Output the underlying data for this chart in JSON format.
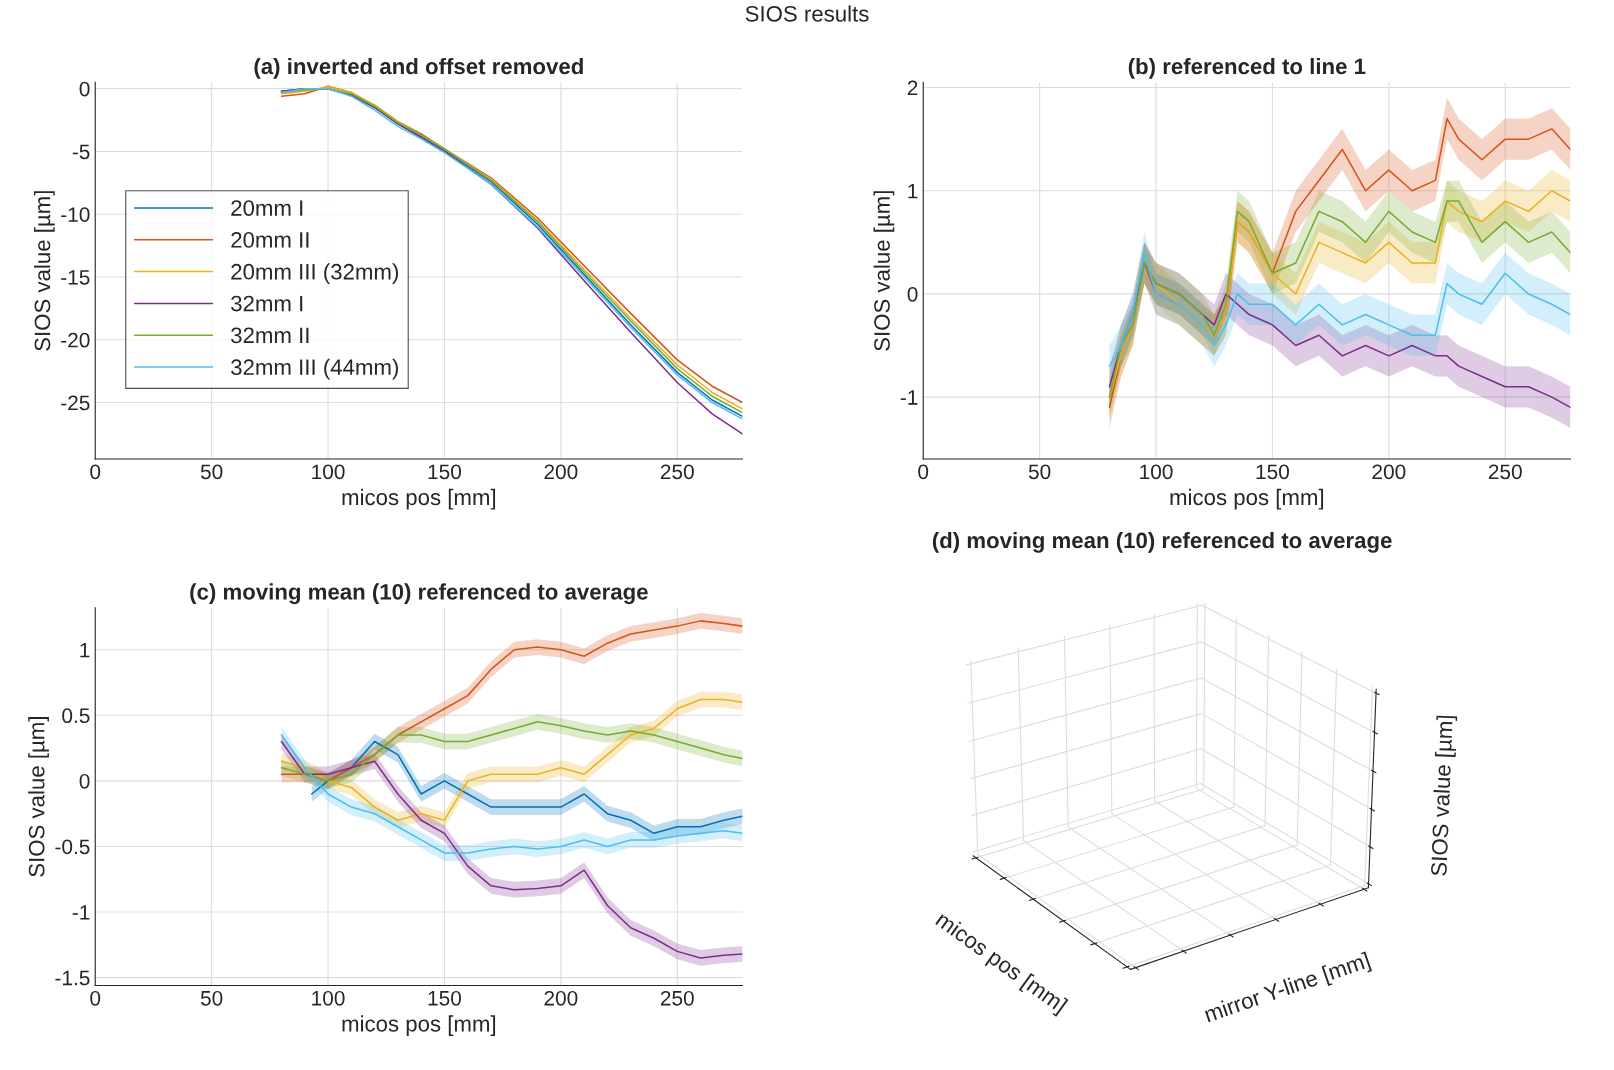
{
  "chart_data": [
    {
      "type": "line",
      "title": "(a) inverted and offset removed",
      "annotations": [
        "SIOS results"
      ],
      "xlabel": "micos pos [mm]",
      "ylabel": "SIOS value [µm]",
      "xlim": [
        0,
        278
      ],
      "ylim": [
        -29.5,
        0.5
      ],
      "xticks": [
        0,
        50,
        100,
        150,
        200,
        250
      ],
      "yticks": [
        -25,
        -20,
        -15,
        -10,
        -5,
        0
      ],
      "grid": true,
      "legend": "center left",
      "x": [
        80,
        90,
        100,
        110,
        120,
        130,
        140,
        150,
        170,
        190,
        210,
        230,
        250,
        265,
        278
      ],
      "series": [
        {
          "name": "20mm I",
          "color": "#0072bd",
          "values": [
            -0.2,
            0,
            0,
            -0.5,
            -1.5,
            -2.8,
            -3.8,
            -4.9,
            -7.4,
            -10.8,
            -14.8,
            -18.8,
            -22.6,
            -24.8,
            -26.1
          ]
        },
        {
          "name": "20mm II",
          "color": "#d95319",
          "values": [
            -0.6,
            -0.4,
            0.2,
            -0.3,
            -1.4,
            -2.6,
            -3.6,
            -4.8,
            -7.1,
            -10.3,
            -14.1,
            -17.9,
            -21.6,
            -23.7,
            -25.0
          ]
        },
        {
          "name": "20mm III (32mm)",
          "color": "#edb120",
          "values": [
            -0.4,
            -0.2,
            0.15,
            -0.3,
            -1.3,
            -2.6,
            -3.7,
            -4.8,
            -7.2,
            -10.5,
            -14.4,
            -18.3,
            -22.0,
            -24.2,
            -25.5
          ]
        },
        {
          "name": "32mm I",
          "color": "#7e2f8e",
          "values": [
            -0.2,
            0,
            0,
            -0.5,
            -1.5,
            -2.8,
            -3.9,
            -5.0,
            -7.6,
            -11.1,
            -15.3,
            -19.4,
            -23.4,
            -25.9,
            -27.5
          ]
        },
        {
          "name": "32mm II",
          "color": "#77ac30",
          "values": [
            -0.3,
            -0.1,
            0,
            -0.4,
            -1.4,
            -2.7,
            -3.7,
            -4.8,
            -7.3,
            -10.6,
            -14.6,
            -18.5,
            -22.3,
            -24.5,
            -25.8
          ]
        },
        {
          "name": "32mm III (44mm)",
          "color": "#4dbeee",
          "values": [
            -0.3,
            0,
            0,
            -0.6,
            -1.7,
            -3.0,
            -4.0,
            -5.1,
            -7.6,
            -11.0,
            -15.0,
            -19.0,
            -22.8,
            -25.0,
            -26.3
          ]
        }
      ]
    },
    {
      "type": "line",
      "title": "(b) referenced to line 1",
      "xlabel": "micos pos [mm]",
      "ylabel": "SIOS value [µm]",
      "xlim": [
        0,
        278
      ],
      "ylim": [
        -1.6,
        2.05
      ],
      "xticks": [
        0,
        50,
        100,
        150,
        200,
        250
      ],
      "yticks": [
        -1,
        0,
        1,
        2
      ],
      "grid": true,
      "x": [
        80,
        85,
        90,
        95,
        100,
        110,
        120,
        125,
        130,
        135,
        140,
        150,
        160,
        170,
        180,
        190,
        200,
        210,
        220,
        225,
        230,
        240,
        250,
        260,
        270,
        278
      ],
      "series": [
        {
          "color": "#d95319",
          "values": [
            -1.1,
            -0.6,
            -0.3,
            0.3,
            0.0,
            -0.1,
            -0.3,
            -0.4,
            -0.2,
            0.7,
            0.6,
            0.2,
            0.8,
            1.1,
            1.4,
            1.0,
            1.2,
            1.0,
            1.1,
            1.7,
            1.5,
            1.3,
            1.5,
            1.5,
            1.6,
            1.4
          ],
          "lower": [
            -1.3,
            -0.8,
            -0.5,
            0.1,
            -0.2,
            -0.3,
            -0.5,
            -0.6,
            -0.4,
            0.5,
            0.4,
            0.0,
            0.6,
            0.9,
            1.2,
            0.8,
            1.0,
            0.8,
            0.9,
            1.5,
            1.3,
            1.1,
            1.3,
            1.3,
            1.4,
            1.2
          ],
          "upper": [
            -0.9,
            -0.4,
            -0.1,
            0.5,
            0.2,
            0.1,
            -0.1,
            -0.2,
            0.0,
            0.9,
            0.8,
            0.4,
            1.0,
            1.3,
            1.6,
            1.2,
            1.4,
            1.2,
            1.3,
            1.9,
            1.7,
            1.5,
            1.7,
            1.7,
            1.8,
            1.6
          ]
        },
        {
          "color": "#edb120",
          "values": [
            -1.0,
            -0.6,
            -0.3,
            0.3,
            0.1,
            -0.1,
            -0.3,
            -0.4,
            -0.2,
            0.7,
            0.6,
            0.2,
            0.0,
            0.5,
            0.4,
            0.3,
            0.5,
            0.3,
            0.3,
            0.9,
            0.8,
            0.7,
            0.9,
            0.8,
            1.0,
            0.9
          ],
          "lower": [
            -1.2,
            -0.8,
            -0.5,
            0.1,
            -0.1,
            -0.3,
            -0.5,
            -0.6,
            -0.4,
            0.5,
            0.4,
            0.0,
            -0.2,
            0.3,
            0.2,
            0.1,
            0.3,
            0.1,
            0.1,
            0.7,
            0.6,
            0.5,
            0.7,
            0.6,
            0.8,
            0.7
          ],
          "upper": [
            -0.8,
            -0.4,
            -0.1,
            0.5,
            0.3,
            0.1,
            -0.1,
            -0.2,
            0.0,
            0.9,
            0.8,
            0.4,
            0.2,
            0.7,
            0.6,
            0.5,
            0.7,
            0.5,
            0.5,
            1.1,
            1.0,
            0.9,
            1.1,
            1.0,
            1.2,
            1.1
          ]
        },
        {
          "color": "#7e2f8e",
          "values": [
            -0.9,
            -0.5,
            -0.2,
            0.3,
            0.1,
            0.0,
            -0.2,
            -0.3,
            0.0,
            -0.1,
            -0.2,
            -0.3,
            -0.5,
            -0.4,
            -0.6,
            -0.5,
            -0.6,
            -0.5,
            -0.6,
            -0.6,
            -0.7,
            -0.8,
            -0.9,
            -0.9,
            -1.0,
            -1.1
          ],
          "lower": [
            -1.1,
            -0.7,
            -0.4,
            0.1,
            -0.1,
            -0.2,
            -0.4,
            -0.5,
            -0.2,
            -0.3,
            -0.4,
            -0.5,
            -0.7,
            -0.6,
            -0.8,
            -0.7,
            -0.8,
            -0.7,
            -0.8,
            -0.8,
            -0.9,
            -1.0,
            -1.1,
            -1.1,
            -1.2,
            -1.3
          ],
          "upper": [
            -0.7,
            -0.3,
            0.0,
            0.5,
            0.3,
            0.2,
            0.0,
            -0.1,
            0.2,
            0.1,
            0.0,
            -0.1,
            -0.3,
            -0.2,
            -0.4,
            -0.3,
            -0.4,
            -0.3,
            -0.4,
            -0.4,
            -0.5,
            -0.6,
            -0.7,
            -0.7,
            -0.8,
            -0.9
          ]
        },
        {
          "color": "#77ac30",
          "values": [
            -1.0,
            -0.5,
            -0.3,
            0.3,
            0.1,
            0.0,
            -0.2,
            -0.4,
            -0.1,
            0.8,
            0.7,
            0.2,
            0.3,
            0.8,
            0.7,
            0.5,
            0.8,
            0.6,
            0.5,
            0.9,
            0.9,
            0.5,
            0.7,
            0.5,
            0.6,
            0.4
          ],
          "lower": [
            -1.2,
            -0.7,
            -0.5,
            0.1,
            -0.1,
            -0.2,
            -0.4,
            -0.6,
            -0.3,
            0.6,
            0.5,
            0.0,
            0.1,
            0.6,
            0.5,
            0.3,
            0.6,
            0.4,
            0.3,
            0.7,
            0.7,
            0.3,
            0.5,
            0.3,
            0.4,
            0.2
          ],
          "upper": [
            -0.8,
            -0.3,
            -0.1,
            0.5,
            0.3,
            0.2,
            0.0,
            -0.2,
            0.1,
            1.0,
            0.9,
            0.4,
            0.5,
            1.0,
            0.9,
            0.7,
            1.0,
            0.8,
            0.7,
            1.1,
            1.1,
            0.7,
            0.9,
            0.7,
            0.8,
            0.6
          ]
        },
        {
          "color": "#4dbeee",
          "values": [
            -0.7,
            -0.5,
            -0.2,
            0.4,
            0.0,
            -0.1,
            -0.3,
            -0.5,
            -0.3,
            0.0,
            -0.1,
            -0.1,
            -0.3,
            -0.1,
            -0.3,
            -0.2,
            -0.3,
            -0.4,
            -0.4,
            0.1,
            0.0,
            -0.1,
            0.2,
            0.0,
            -0.1,
            -0.2
          ],
          "lower": [
            -0.9,
            -0.7,
            -0.4,
            0.2,
            -0.2,
            -0.3,
            -0.5,
            -0.7,
            -0.5,
            -0.2,
            -0.3,
            -0.3,
            -0.5,
            -0.3,
            -0.5,
            -0.4,
            -0.5,
            -0.6,
            -0.6,
            -0.1,
            -0.2,
            -0.3,
            0.0,
            -0.2,
            -0.3,
            -0.4
          ],
          "upper": [
            -0.5,
            -0.3,
            0.0,
            0.6,
            0.2,
            0.1,
            -0.1,
            -0.3,
            -0.1,
            0.2,
            0.1,
            0.1,
            -0.1,
            0.1,
            -0.1,
            0.0,
            -0.1,
            -0.2,
            -0.2,
            0.3,
            0.2,
            0.1,
            0.4,
            0.2,
            0.1,
            0.0
          ]
        }
      ]
    },
    {
      "type": "line",
      "title": "(c) moving mean (10) referenced to average",
      "xlabel": "micos pos [mm]",
      "ylabel": "SIOS value [µm]",
      "xlim": [
        0,
        278
      ],
      "ylim": [
        -1.56,
        1.32
      ],
      "xticks": [
        0,
        50,
        100,
        150,
        200,
        250
      ],
      "yticks": [
        -1.5,
        -1,
        -0.5,
        0,
        0.5,
        1
      ],
      "grid": true,
      "x": [
        80,
        90,
        100,
        110,
        120,
        130,
        140,
        150,
        160,
        170,
        180,
        190,
        200,
        210,
        220,
        230,
        240,
        250,
        260,
        270,
        278
      ],
      "series": [
        {
          "color": "#0072bd",
          "x": [
            93,
            100,
            110,
            120,
            130,
            140,
            150,
            160,
            170,
            180,
            190,
            200,
            210,
            220,
            230,
            240,
            250,
            260,
            270,
            278
          ],
          "values": [
            -0.1,
            0.0,
            0.1,
            0.3,
            0.2,
            -0.1,
            0.0,
            -0.1,
            -0.2,
            -0.2,
            -0.2,
            -0.2,
            -0.1,
            -0.25,
            -0.3,
            -0.4,
            -0.35,
            -0.35,
            -0.3,
            -0.27
          ],
          "lower": [
            -0.16,
            -0.06,
            0.04,
            0.24,
            0.14,
            -0.16,
            -0.06,
            -0.16,
            -0.26,
            -0.26,
            -0.26,
            -0.26,
            -0.16,
            -0.31,
            -0.36,
            -0.46,
            -0.41,
            -0.41,
            -0.36,
            -0.33
          ],
          "upper": [
            -0.04,
            0.06,
            0.16,
            0.36,
            0.26,
            -0.04,
            0.06,
            -0.04,
            -0.14,
            -0.14,
            -0.14,
            -0.14,
            -0.04,
            -0.19,
            -0.24,
            -0.34,
            -0.29,
            -0.29,
            -0.24,
            -0.21
          ]
        },
        {
          "color": "#d95319",
          "values": [
            0.05,
            0.05,
            0.0,
            0.1,
            0.2,
            0.35,
            0.45,
            0.55,
            0.65,
            0.85,
            1.0,
            1.02,
            1.0,
            0.95,
            1.05,
            1.12,
            1.15,
            1.18,
            1.22,
            1.2,
            1.18
          ],
          "lower": [
            -0.01,
            -0.01,
            -0.06,
            0.04,
            0.14,
            0.29,
            0.39,
            0.49,
            0.59,
            0.79,
            0.94,
            0.96,
            0.94,
            0.89,
            0.99,
            1.06,
            1.09,
            1.12,
            1.16,
            1.14,
            1.12
          ],
          "upper": [
            0.11,
            0.11,
            0.06,
            0.16,
            0.26,
            0.41,
            0.51,
            0.61,
            0.71,
            0.91,
            1.06,
            1.08,
            1.06,
            1.01,
            1.11,
            1.18,
            1.21,
            1.24,
            1.28,
            1.26,
            1.24
          ]
        },
        {
          "color": "#edb120",
          "values": [
            0.15,
            0.1,
            0.0,
            -0.05,
            -0.2,
            -0.3,
            -0.25,
            -0.3,
            0.0,
            0.05,
            0.05,
            0.05,
            0.1,
            0.05,
            0.2,
            0.35,
            0.4,
            0.55,
            0.62,
            0.62,
            0.6
          ],
          "lower": [
            0.09,
            0.04,
            -0.06,
            -0.11,
            -0.26,
            -0.36,
            -0.31,
            -0.36,
            -0.06,
            -0.01,
            -0.01,
            -0.01,
            0.04,
            -0.01,
            0.14,
            0.29,
            0.34,
            0.49,
            0.56,
            0.56,
            0.54
          ],
          "upper": [
            0.21,
            0.16,
            0.06,
            0.01,
            -0.14,
            -0.24,
            -0.19,
            -0.24,
            0.06,
            0.11,
            0.11,
            0.11,
            0.16,
            0.11,
            0.26,
            0.41,
            0.46,
            0.61,
            0.68,
            0.68,
            0.66
          ]
        },
        {
          "color": "#7e2f8e",
          "values": [
            0.3,
            0.05,
            0.05,
            0.1,
            0.15,
            -0.1,
            -0.3,
            -0.4,
            -0.65,
            -0.8,
            -0.83,
            -0.82,
            -0.8,
            -0.68,
            -0.95,
            -1.12,
            -1.2,
            -1.3,
            -1.35,
            -1.33,
            -1.32
          ],
          "lower": [
            0.24,
            -0.01,
            -0.01,
            0.04,
            0.09,
            -0.16,
            -0.36,
            -0.46,
            -0.71,
            -0.86,
            -0.89,
            -0.88,
            -0.86,
            -0.74,
            -1.01,
            -1.18,
            -1.26,
            -1.36,
            -1.41,
            -1.39,
            -1.38
          ],
          "upper": [
            0.36,
            0.11,
            0.11,
            0.16,
            0.21,
            -0.04,
            -0.24,
            -0.34,
            -0.59,
            -0.74,
            -0.77,
            -0.76,
            -0.74,
            -0.62,
            -0.89,
            -1.06,
            -1.14,
            -1.24,
            -1.29,
            -1.27,
            -1.26
          ]
        },
        {
          "color": "#77ac30",
          "values": [
            0.1,
            0.05,
            0.0,
            0.05,
            0.2,
            0.35,
            0.35,
            0.3,
            0.3,
            0.35,
            0.4,
            0.45,
            0.42,
            0.38,
            0.35,
            0.38,
            0.35,
            0.3,
            0.25,
            0.2,
            0.17
          ],
          "lower": [
            0.04,
            -0.01,
            -0.06,
            -0.01,
            0.14,
            0.29,
            0.29,
            0.24,
            0.24,
            0.29,
            0.34,
            0.39,
            0.36,
            0.32,
            0.29,
            0.32,
            0.29,
            0.24,
            0.19,
            0.14,
            0.11
          ],
          "upper": [
            0.16,
            0.11,
            0.06,
            0.11,
            0.26,
            0.41,
            0.41,
            0.36,
            0.36,
            0.41,
            0.46,
            0.51,
            0.48,
            0.44,
            0.41,
            0.44,
            0.41,
            0.36,
            0.31,
            0.26,
            0.23
          ]
        },
        {
          "color": "#4dbeee",
          "values": [
            0.35,
            0.1,
            -0.1,
            -0.2,
            -0.25,
            -0.35,
            -0.45,
            -0.55,
            -0.55,
            -0.52,
            -0.5,
            -0.52,
            -0.5,
            -0.45,
            -0.5,
            -0.45,
            -0.45,
            -0.42,
            -0.4,
            -0.38,
            -0.4
          ],
          "lower": [
            0.29,
            0.04,
            -0.16,
            -0.26,
            -0.31,
            -0.41,
            -0.51,
            -0.61,
            -0.61,
            -0.58,
            -0.56,
            -0.58,
            -0.56,
            -0.51,
            -0.56,
            -0.51,
            -0.51,
            -0.48,
            -0.46,
            -0.44,
            -0.46
          ],
          "upper": [
            0.41,
            0.16,
            -0.04,
            -0.14,
            -0.19,
            -0.29,
            -0.39,
            -0.49,
            -0.49,
            -0.46,
            -0.44,
            -0.46,
            -0.44,
            -0.39,
            -0.44,
            -0.39,
            -0.39,
            -0.36,
            -0.34,
            -0.32,
            -0.34
          ]
        }
      ]
    },
    {
      "type": "other",
      "title": "(d) moving mean (10) referenced to average",
      "xlabel": "micos pos [mm]",
      "ylabel": "mirror Y-line [mm]",
      "annotations": [
        "SIOS value [µm]"
      ]
    }
  ]
}
